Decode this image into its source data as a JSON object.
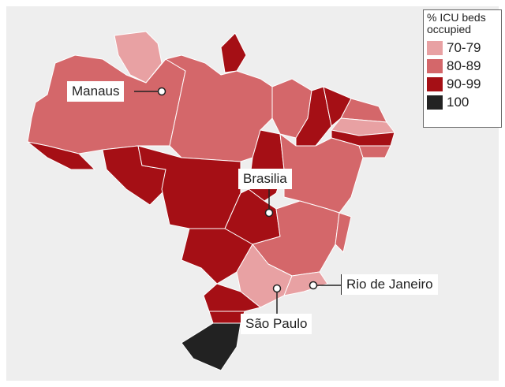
{
  "legend": {
    "title": "% ICU beds occupied",
    "items": [
      {
        "label": "70-79",
        "color": "#e8a1a3"
      },
      {
        "label": "80-89",
        "color": "#d4676a"
      },
      {
        "label": "90-99",
        "color": "#a50f15"
      },
      {
        "label": "100",
        "color": "#222222"
      }
    ]
  },
  "cities": [
    {
      "name": "Manaus"
    },
    {
      "name": "Brasilia"
    },
    {
      "name": "Rio de Janeiro"
    },
    {
      "name": "São Paulo"
    }
  ]
}
